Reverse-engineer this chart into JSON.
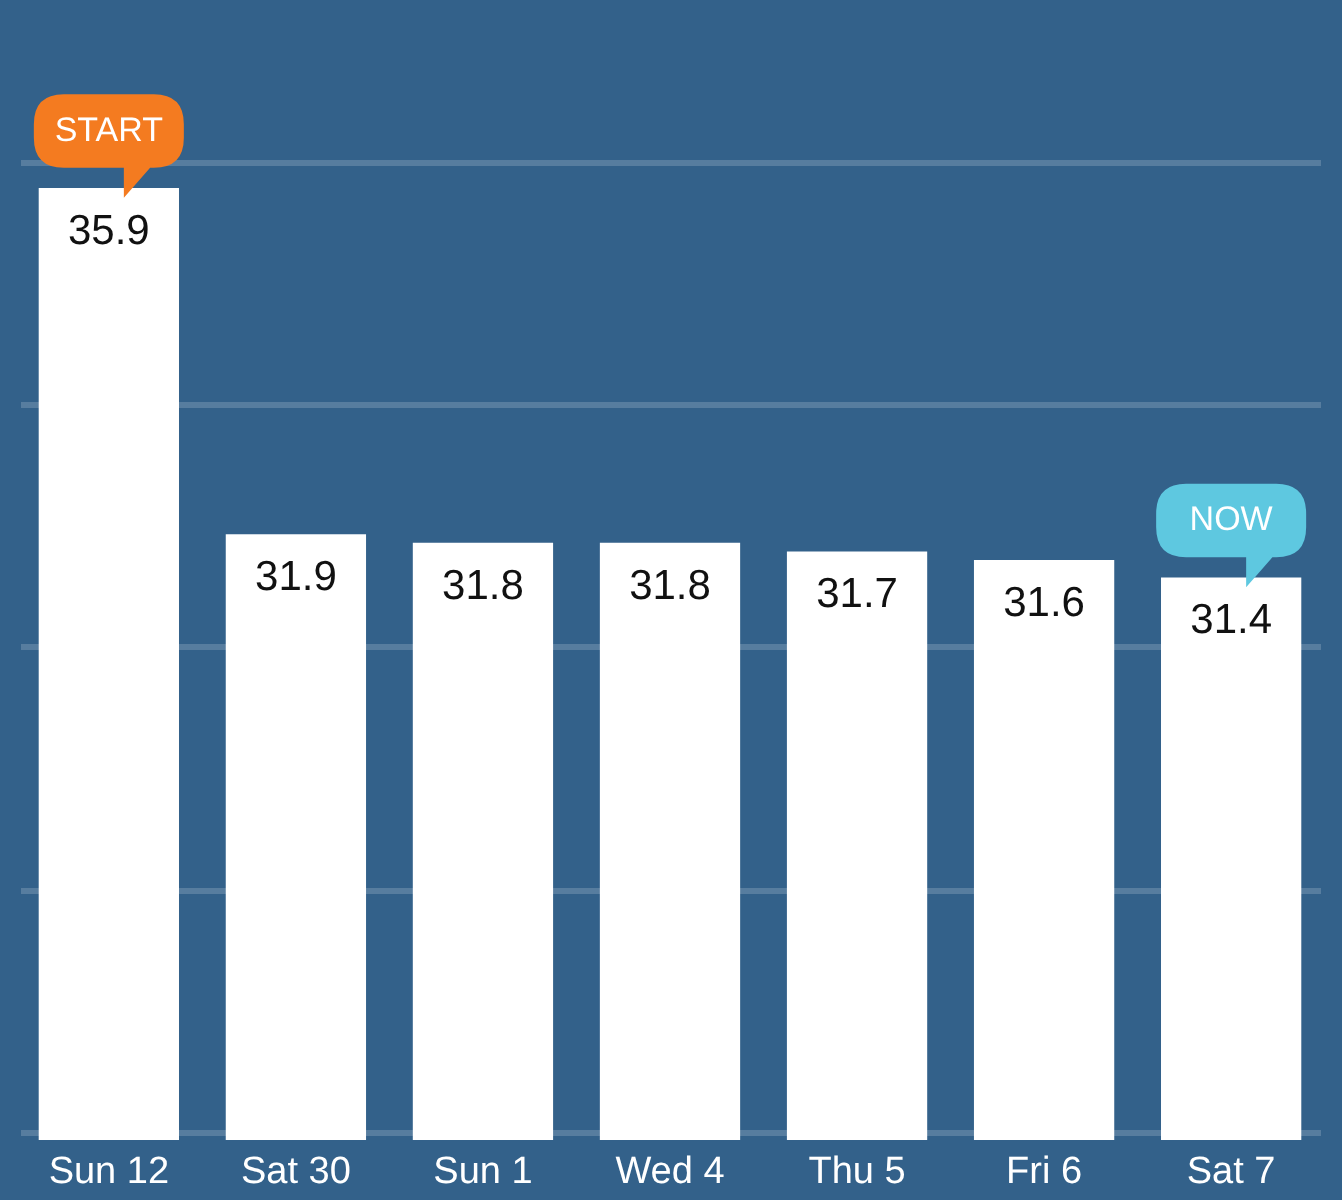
{
  "chart_data": {
    "type": "bar",
    "categories": [
      "Sun 12",
      "Sat 30",
      "Sun 1",
      "Wed 4",
      "Thu 5",
      "Fri 6",
      "Sat 7"
    ],
    "values": [
      35.9,
      31.9,
      31.8,
      31.8,
      31.7,
      31.6,
      31.4
    ],
    "color": "#ffffff",
    "data_labels": true,
    "ylim": [
      24.9,
      36.2
    ],
    "yticks": [
      {
        "value": 25.0,
        "label": null
      },
      {
        "value": 27.8,
        "label": null
      },
      {
        "value": 30.6,
        "label": null
      },
      {
        "value": 33.4,
        "label": null
      },
      {
        "value": 36.2,
        "label": null
      }
    ],
    "grid": "y",
    "tick_labels": "x",
    "annotations": [
      {
        "text": "START",
        "x": "Sun 12",
        "y": 35.9
      },
      {
        "text": "NOW",
        "x": "Sat 7",
        "y": 31.4
      }
    ]
  }
}
